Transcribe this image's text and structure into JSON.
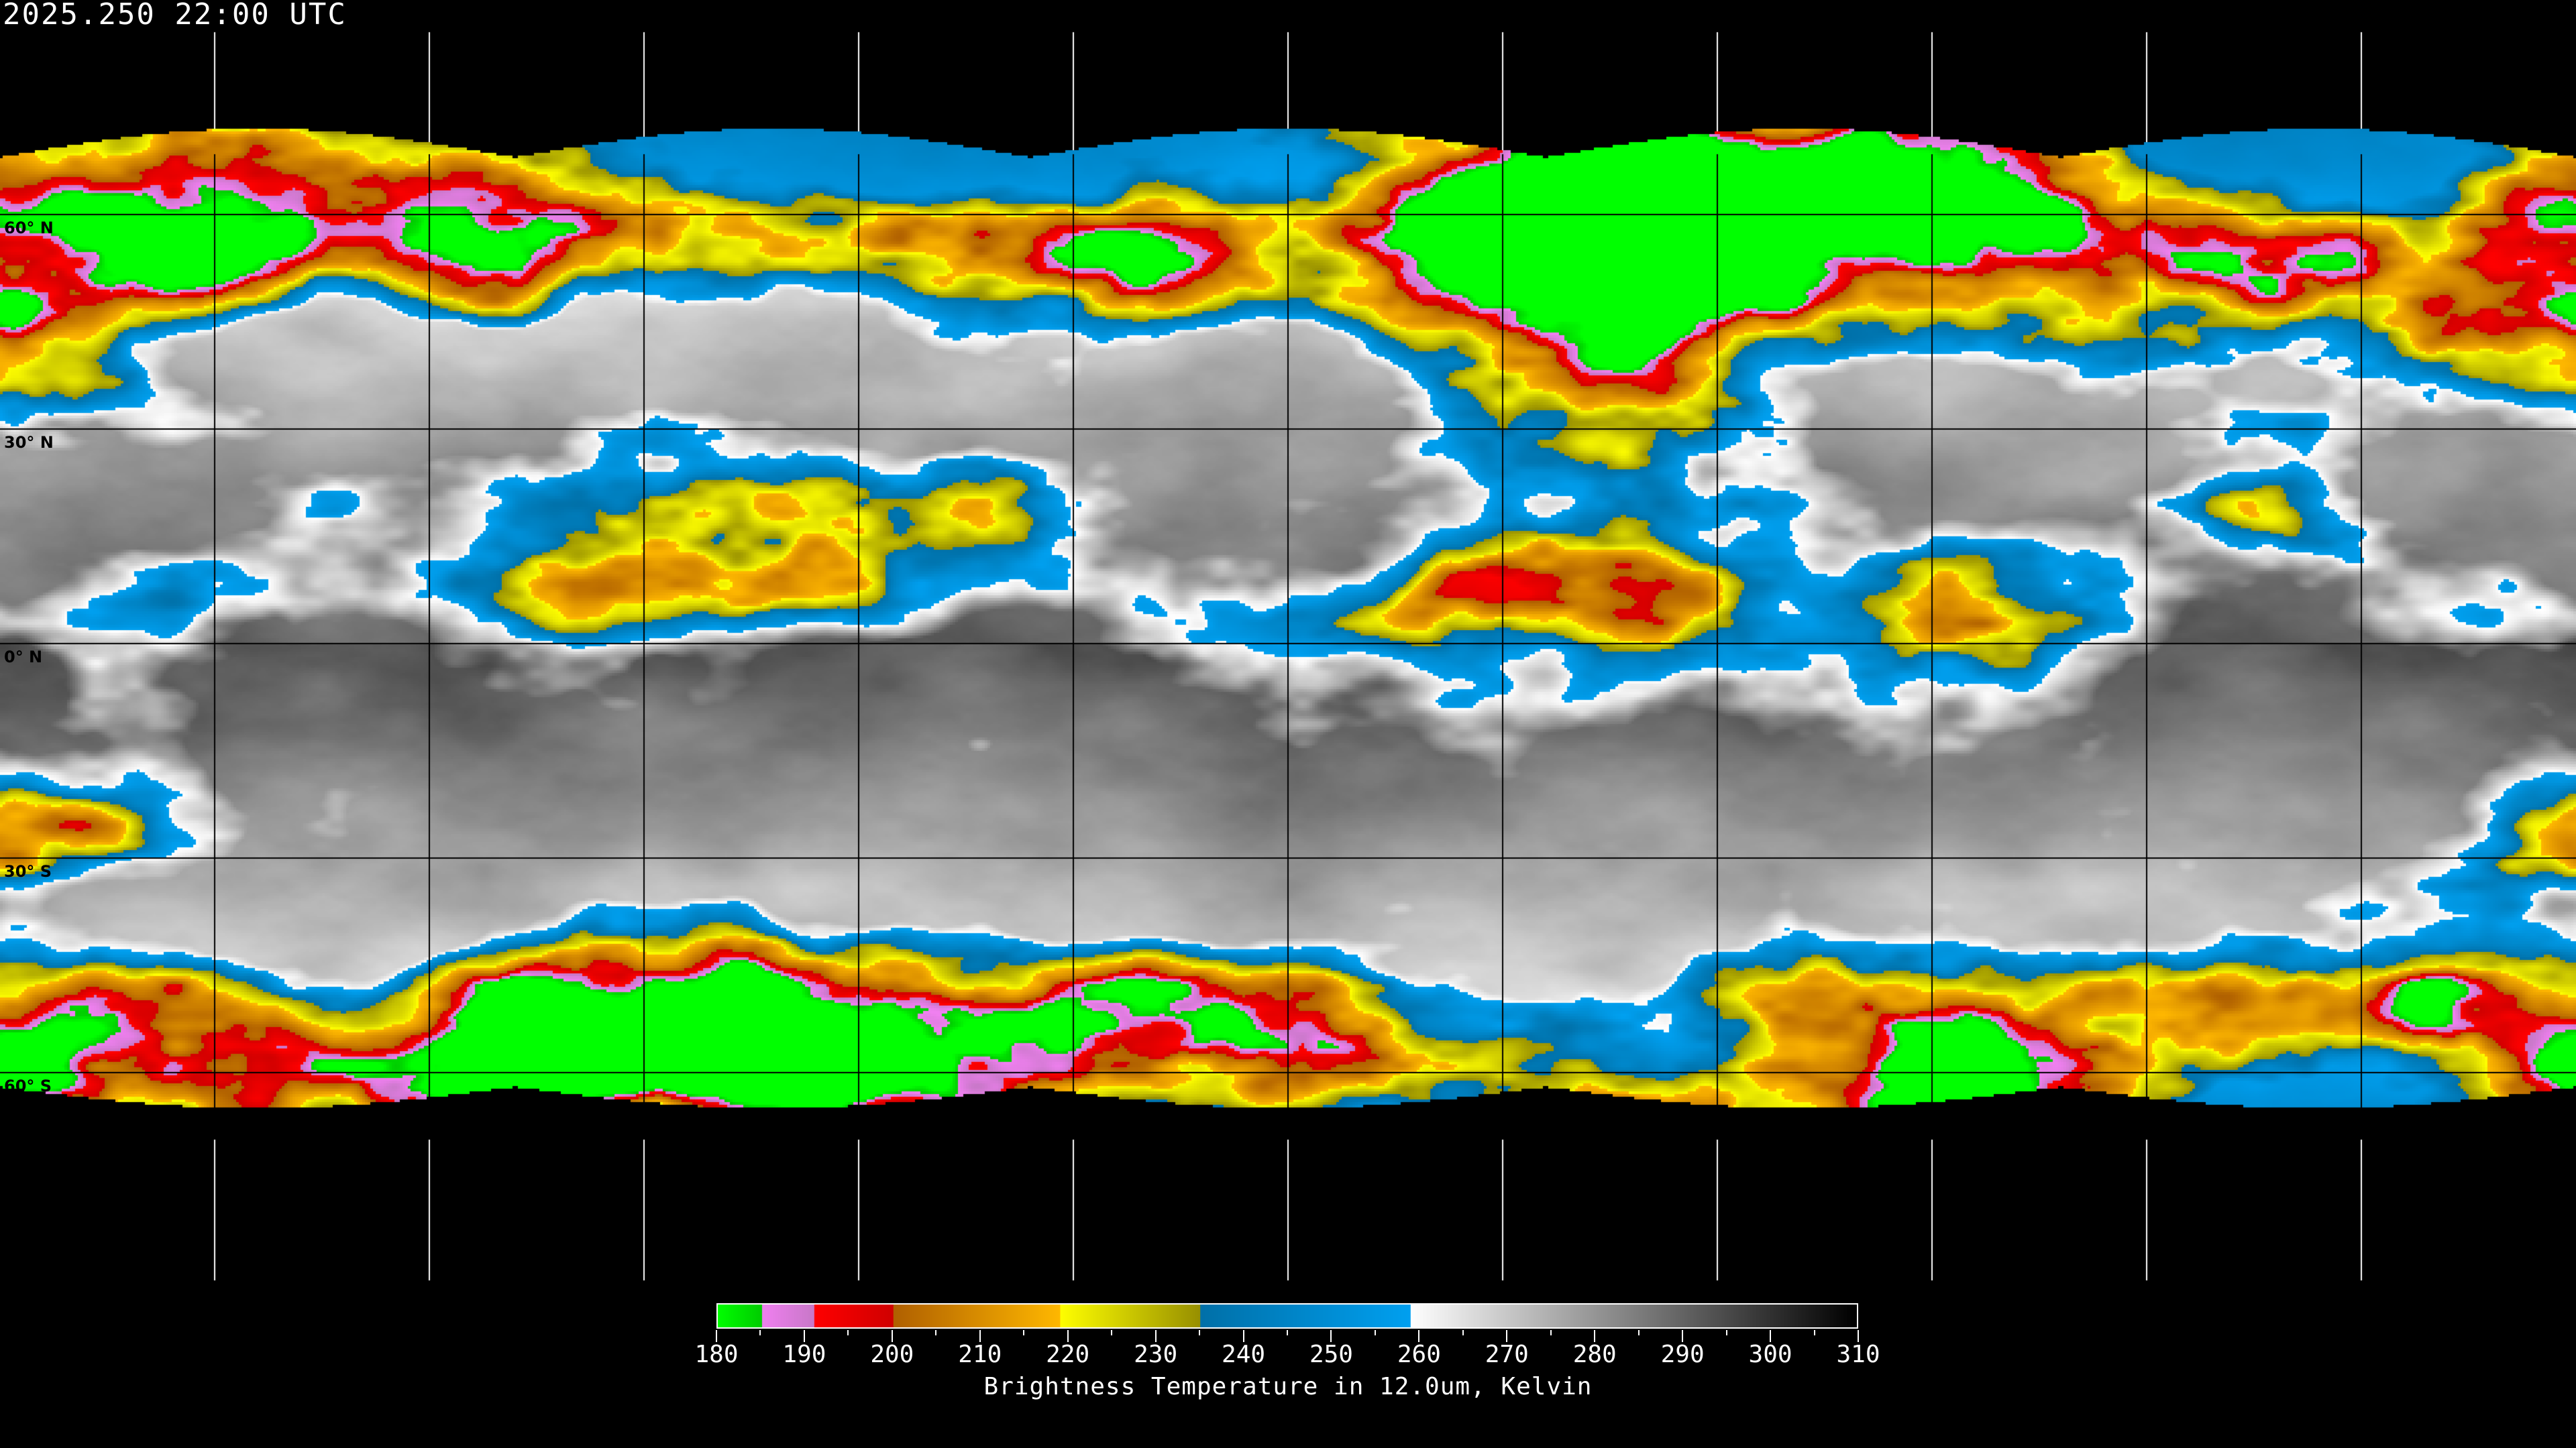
{
  "title": "2025.250 22:00 UTC",
  "map": {
    "projection": "equirectangular",
    "grid": {
      "lon_step_deg": 30,
      "lat_step_deg": 30
    },
    "lat_labels": [
      "60° N",
      "30° N",
      "0° N",
      "30° S",
      "60° S"
    ],
    "lat_label_values": [
      60,
      30,
      0,
      -30,
      -60
    ]
  },
  "colorbar": {
    "label": "Brightness Temperature in 12.0um, Kelvin",
    "min": 180,
    "max": 310,
    "tick_labels": [
      "180",
      "190",
      "200",
      "210",
      "220",
      "230",
      "240",
      "250",
      "260",
      "270",
      "280",
      "290",
      "300",
      "310"
    ],
    "segments": [
      {
        "from": 180,
        "to": 185,
        "start": "#00ff00",
        "end": "#00cc00"
      },
      {
        "from": 185,
        "to": 191,
        "start": "#f080f0",
        "end": "#c878c8"
      },
      {
        "from": 191,
        "to": 200,
        "start": "#ff0000",
        "end": "#d00000"
      },
      {
        "from": 200,
        "to": 219,
        "start": "#b06000",
        "end": "#ffb800"
      },
      {
        "from": 219,
        "to": 235,
        "start": "#ffff00",
        "end": "#989000"
      },
      {
        "from": 235,
        "to": 259,
        "start": "#0070a8",
        "end": "#00a0f0"
      },
      {
        "from": 259,
        "to": 310,
        "start": "#ffffff",
        "end": "#000000"
      }
    ]
  }
}
